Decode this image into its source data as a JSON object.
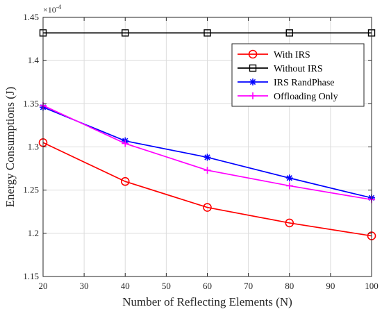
{
  "chart_data": {
    "type": "line",
    "xlabel": "Number of Reflecting Elements (N)",
    "ylabel": "Energy Consumptions (J)",
    "y_multiplier": "×10",
    "y_exponent": "-4",
    "xlim": [
      20,
      100
    ],
    "ylim": [
      1.15,
      1.45
    ],
    "xticks": [
      20,
      30,
      40,
      50,
      60,
      70,
      80,
      90,
      100
    ],
    "yticks": [
      1.15,
      1.2,
      1.25,
      1.3,
      1.35,
      1.4,
      1.45
    ],
    "xtick_labels": [
      "20",
      "30",
      "40",
      "50",
      "60",
      "70",
      "80",
      "90",
      "100"
    ],
    "ytick_labels": [
      "1.15",
      "1.2",
      "1.25",
      "1.3",
      "1.35",
      "1.4",
      "1.45"
    ],
    "grid": true,
    "legend_position": "top-right",
    "x": [
      20,
      40,
      60,
      80,
      100
    ],
    "series": [
      {
        "name": "With IRS",
        "color": "#ff0000",
        "marker": "circle",
        "values": [
          1.305,
          1.26,
          1.23,
          1.212,
          1.197
        ]
      },
      {
        "name": "Without IRS",
        "color": "#000000",
        "marker": "square",
        "values": [
          1.432,
          1.432,
          1.432,
          1.432,
          1.432
        ]
      },
      {
        "name": "IRS RandPhase",
        "color": "#0000ff",
        "marker": "asterisk",
        "values": [
          1.346,
          1.307,
          1.288,
          1.264,
          1.241
        ]
      },
      {
        "name": "Offloading Only",
        "color": "#ff00ff",
        "marker": "plus",
        "values": [
          1.348,
          1.304,
          1.273,
          1.255,
          1.239
        ]
      }
    ]
  }
}
